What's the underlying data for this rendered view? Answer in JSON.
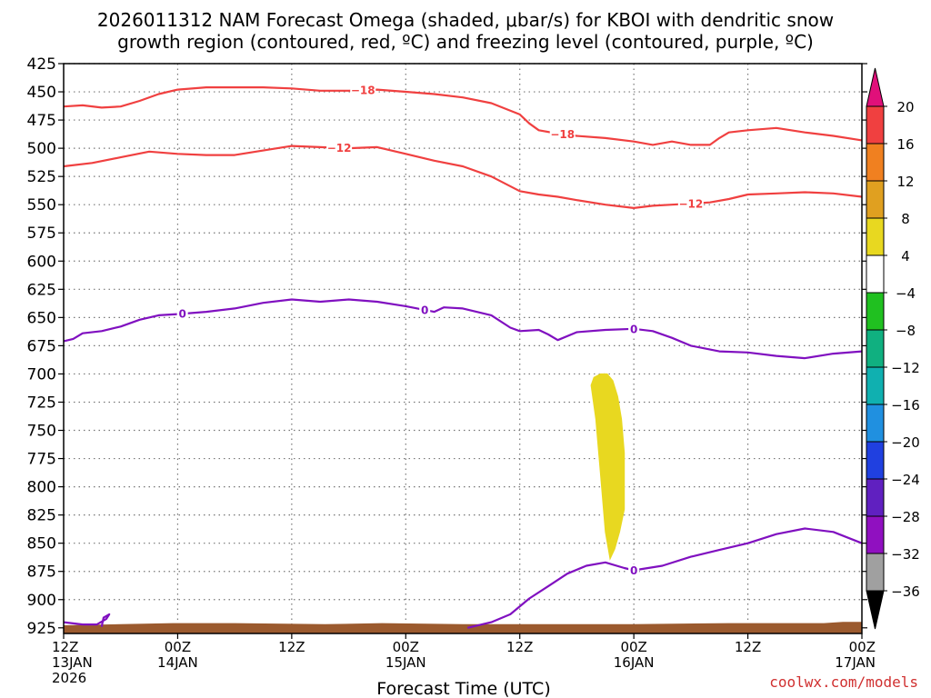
{
  "chart_data": {
    "type": "time-height cross-section",
    "title_line1": "2026011312 NAM Forecast Omega (shaded, μbar/s) for KBOI with dendritic snow",
    "title_line2": "growth region (contoured, red, ºC) and freezing level (contoured, purple, ºC)",
    "xlabel": "Forecast Time (UTC)",
    "credit": "coolwx.com/models",
    "xlim_hours": [
      0,
      84
    ],
    "ylim_mb": [
      425,
      930
    ],
    "y_ticks": [
      425,
      450,
      475,
      500,
      525,
      550,
      575,
      600,
      625,
      650,
      675,
      700,
      725,
      750,
      775,
      800,
      825,
      850,
      875,
      900,
      925
    ],
    "x_ticks": [
      {
        "hour": 0,
        "line1": "12Z",
        "line2": "13JAN",
        "line3": "2026"
      },
      {
        "hour": 12,
        "line1": "00Z",
        "line2": "14JAN",
        "line3": ""
      },
      {
        "hour": 24,
        "line1": "12Z",
        "line2": "",
        "line3": ""
      },
      {
        "hour": 36,
        "line1": "00Z",
        "line2": "15JAN",
        "line3": ""
      },
      {
        "hour": 48,
        "line1": "12Z",
        "line2": "",
        "line3": ""
      },
      {
        "hour": 60,
        "line1": "00Z",
        "line2": "16JAN",
        "line3": ""
      },
      {
        "hour": 72,
        "line1": "12Z",
        "line2": "",
        "line3": ""
      },
      {
        "hour": 84,
        "line1": "00Z",
        "line2": "17JAN",
        "line3": ""
      }
    ],
    "colorbar": {
      "labels": [
        "20",
        "16",
        "12",
        "8",
        "4",
        "−4",
        "−8",
        "−12",
        "−16",
        "−20",
        "−24",
        "−28",
        "−32",
        "−36"
      ],
      "colors": [
        "#f02060",
        "#f04040",
        "#f08020",
        "#e0a020",
        "#e8d820",
        "#ffffff",
        "#20c020",
        "#10b080",
        "#10b0b0",
        "#2090e0",
        "#2040e0",
        "#6020c0",
        "#9010c0",
        "#a0a0a0"
      ],
      "top_arrow_color": "#e0107a",
      "bottom_arrow_color": "#000000"
    },
    "series": [
      {
        "name": "-18 C isotherm",
        "color": "#f04040",
        "hours": [
          0,
          2,
          4,
          6,
          8,
          10,
          12,
          15,
          18,
          21,
          24,
          27,
          30,
          33,
          36,
          39,
          42,
          45,
          48,
          49,
          50,
          52,
          54,
          57,
          60,
          62,
          64,
          66,
          68,
          69,
          70,
          72,
          75,
          78,
          81,
          84
        ],
        "mb": [
          463,
          462,
          464,
          463,
          458,
          452,
          448,
          446,
          446,
          446,
          447,
          449,
          449,
          448,
          450,
          452,
          455,
          460,
          470,
          478,
          484,
          487,
          489,
          491,
          494,
          497,
          494,
          497,
          497,
          491,
          486,
          484,
          482,
          486,
          489,
          493
        ],
        "labels": [
          {
            "hour": 31.5,
            "text": "−18"
          },
          {
            "hour": 52.5,
            "text": "−18"
          }
        ]
      },
      {
        "name": "-12 C isotherm",
        "color": "#f04040",
        "hours": [
          0,
          3,
          6,
          9,
          12,
          15,
          18,
          21,
          24,
          27,
          30,
          33,
          36,
          39,
          42,
          45,
          48,
          50,
          52,
          54,
          57,
          60,
          62,
          64,
          66,
          68,
          70,
          72,
          75,
          78,
          81,
          84
        ],
        "mb": [
          516,
          513,
          508,
          503,
          505,
          506,
          506,
          502,
          498,
          499,
          500,
          499,
          505,
          511,
          516,
          525,
          538,
          541,
          543,
          546,
          550,
          553,
          551,
          550,
          549,
          548,
          545,
          541,
          540,
          539,
          540,
          543
        ],
        "labels": [
          {
            "hour": 29,
            "text": "−12"
          },
          {
            "hour": 66,
            "text": "−12"
          }
        ]
      },
      {
        "name": "0 C isotherm (freezing level, upper)",
        "color": "#8010c0",
        "hours": [
          0,
          1,
          2,
          4,
          6,
          8,
          10,
          12,
          15,
          18,
          21,
          24,
          27,
          30,
          33,
          36,
          39,
          40,
          42,
          45,
          47,
          48,
          50,
          51,
          52,
          54,
          57,
          60,
          62,
          64,
          66,
          69,
          72,
          75,
          78,
          81,
          84
        ],
        "mb": [
          671,
          669,
          664,
          662,
          658,
          652,
          648,
          647,
          645,
          642,
          637,
          634,
          636,
          634,
          636,
          640,
          645,
          641,
          642,
          648,
          659,
          662,
          661,
          665,
          670,
          663,
          661,
          660,
          662,
          668,
          675,
          680,
          681,
          684,
          686,
          682,
          680
        ],
        "labels": [
          {
            "hour": 12.5,
            "text": "0"
          },
          {
            "hour": 38,
            "text": "0"
          },
          {
            "hour": 60,
            "text": "0"
          }
        ]
      },
      {
        "name": "0 C isotherm (lower)",
        "color": "#8010c0",
        "hours": [
          42.5,
          45,
          47,
          49,
          51,
          53,
          55,
          57,
          59,
          60,
          63,
          66,
          69,
          72,
          75,
          78,
          81,
          84
        ],
        "mb": [
          925,
          920,
          913,
          899,
          888,
          877,
          870,
          867,
          872,
          874,
          870,
          862,
          856,
          850,
          842,
          837,
          840,
          850
        ],
        "labels": [
          {
            "hour": 60,
            "text": "0"
          }
        ]
      },
      {
        "name": "0 C isotherm (surface loop)",
        "color": "#8010c0",
        "hours": [
          0,
          2,
          3.5,
          4.5,
          4.8,
          4.2,
          4.0
        ],
        "mb": [
          920,
          922,
          922,
          917,
          913,
          916,
          924
        ],
        "labels": []
      },
      {
        "name": "Omega +4 shaded area",
        "color": "#e8d820",
        "fill": true,
        "hours": [
          55.5,
          56,
          56.5,
          57,
          57.5,
          58,
          58.5,
          59,
          59,
          58.7,
          58.3,
          57.8,
          57.2,
          56.5,
          55.8,
          55.5
        ],
        "mb": [
          710,
          740,
          790,
          840,
          864,
          855,
          840,
          820,
          770,
          740,
          720,
          706,
          700,
          700,
          703,
          710
        ],
        "labels": []
      }
    ],
    "terrain": {
      "color": "#9b5a2e",
      "hours": [
        0,
        6,
        11.5,
        18,
        27.5,
        33.5,
        42,
        50,
        60,
        70,
        80,
        82,
        84
      ],
      "mb": [
        926,
        925,
        924,
        924,
        925,
        924,
        925,
        925,
        925,
        924,
        924,
        923,
        923
      ]
    }
  }
}
